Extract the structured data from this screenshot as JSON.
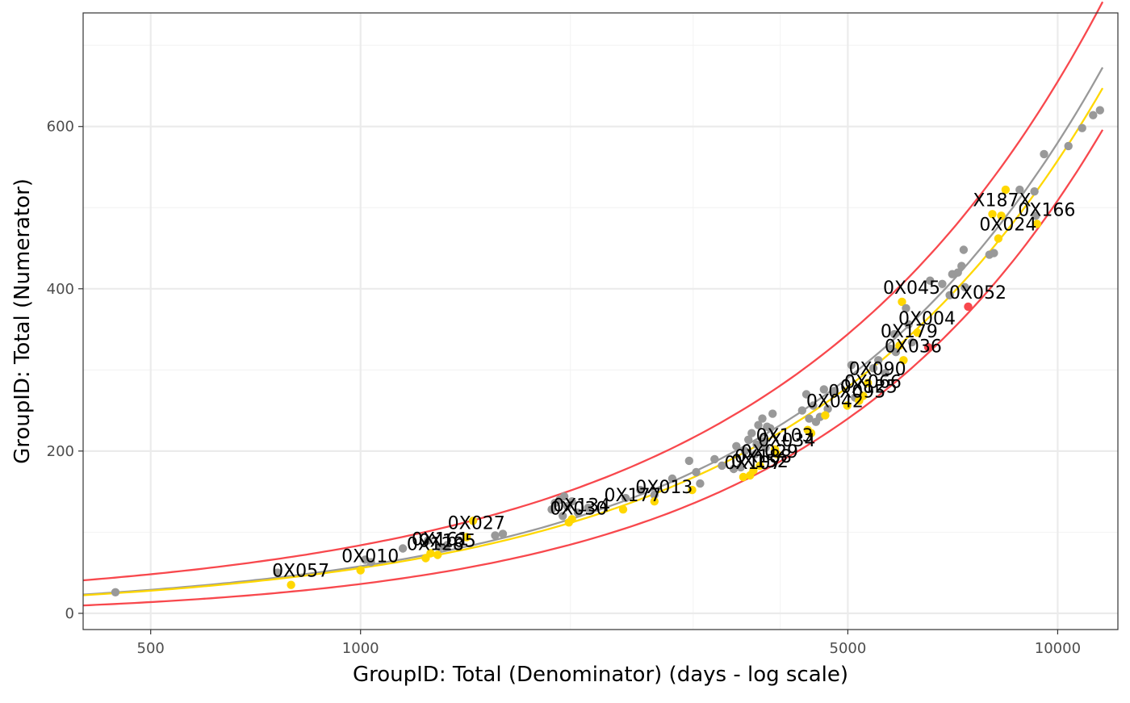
{
  "colors": {
    "grey": "#999999",
    "yellow": "#FFD700",
    "red": "#F8484D",
    "panel_border": "#333333",
    "grid_major": "#EBEBEB",
    "grid_minor": "#F3F3F3",
    "tick_text": "#4D4D4D"
  },
  "chart_data": {
    "type": "scatter",
    "title": "",
    "xlabel": "GroupID:  Total (Denominator) (days - log scale)",
    "ylabel": "GroupID:  Total (Numerator)",
    "x_scale": "log",
    "xlim": [
      400,
      12200
    ],
    "ylim": [
      -20,
      740
    ],
    "x_ticks": [
      500,
      1000,
      5000,
      10000
    ],
    "x_tick_labels": [
      "500",
      "1000",
      "5000",
      "10000"
    ],
    "x_minor_grid": [
      2000,
      3000,
      4000
    ],
    "y_ticks": [
      0,
      200,
      400,
      600
    ],
    "y_tick_labels": [
      "0",
      "200",
      "400",
      "600"
    ],
    "y_minor_grid": [
      100,
      300,
      500,
      700
    ],
    "grid": true,
    "legend": "none",
    "rate": 0.058,
    "curves": [
      {
        "role": "average",
        "color_key": "grey",
        "rate": 0.058
      },
      {
        "role": "funnel-low",
        "color_key": "yellow",
        "rate": 0.0558
      },
      {
        "role": "funnel-upper",
        "color_key": "red",
        "rate": 0.058,
        "ci": "upper"
      },
      {
        "role": "funnel-lower",
        "color_key": "red",
        "rate": 0.058,
        "ci": "lower"
      }
    ],
    "points": [
      {
        "x": 445,
        "y": 26,
        "c": "grey"
      },
      {
        "x": 760,
        "y": 50,
        "c": "grey"
      },
      {
        "x": 795,
        "y": 35,
        "c": "yellow",
        "label": "0X057"
      },
      {
        "x": 1015,
        "y": 66,
        "c": "grey"
      },
      {
        "x": 1035,
        "y": 63,
        "c": "grey"
      },
      {
        "x": 1000,
        "y": 53,
        "c": "yellow",
        "label": "0X010"
      },
      {
        "x": 1150,
        "y": 80,
        "c": "grey"
      },
      {
        "x": 1240,
        "y": 68,
        "c": "yellow",
        "label": "0X128"
      },
      {
        "x": 1260,
        "y": 74,
        "c": "yellow",
        "label": "0X161"
      },
      {
        "x": 1290,
        "y": 72,
        "c": "yellow",
        "label": "0X165"
      },
      {
        "x": 1250,
        "y": 90,
        "c": "grey"
      },
      {
        "x": 1300,
        "y": 82,
        "c": "grey"
      },
      {
        "x": 1330,
        "y": 84,
        "c": "grey"
      },
      {
        "x": 1420,
        "y": 94,
        "c": "yellow",
        "label": "0X027"
      },
      {
        "x": 1450,
        "y": 114,
        "c": "yellow"
      },
      {
        "x": 1560,
        "y": 96,
        "c": "grey"
      },
      {
        "x": 1600,
        "y": 98,
        "c": "grey"
      },
      {
        "x": 1880,
        "y": 128,
        "c": "grey"
      },
      {
        "x": 1900,
        "y": 136,
        "c": "grey"
      },
      {
        "x": 1930,
        "y": 140,
        "c": "grey"
      },
      {
        "x": 1960,
        "y": 144,
        "c": "grey"
      },
      {
        "x": 1950,
        "y": 120,
        "c": "grey"
      },
      {
        "x": 1980,
        "y": 132,
        "c": "grey"
      },
      {
        "x": 2010,
        "y": 138,
        "c": "grey"
      },
      {
        "x": 1990,
        "y": 112,
        "c": "yellow",
        "label": "0X030"
      },
      {
        "x": 2010,
        "y": 116,
        "c": "yellow",
        "label": "0X134"
      },
      {
        "x": 2050,
        "y": 124,
        "c": "grey"
      },
      {
        "x": 2120,
        "y": 130,
        "c": "grey"
      },
      {
        "x": 2380,
        "y": 128,
        "c": "yellow",
        "label": "0X177"
      },
      {
        "x": 2400,
        "y": 142,
        "c": "grey"
      },
      {
        "x": 2520,
        "y": 152,
        "c": "grey"
      },
      {
        "x": 2640,
        "y": 146,
        "c": "grey"
      },
      {
        "x": 2640,
        "y": 138,
        "c": "yellow",
        "label": "0X013"
      },
      {
        "x": 2800,
        "y": 166,
        "c": "grey"
      },
      {
        "x": 2960,
        "y": 188,
        "c": "grey"
      },
      {
        "x": 2990,
        "y": 152,
        "c": "yellow"
      },
      {
        "x": 3030,
        "y": 174,
        "c": "grey"
      },
      {
        "x": 3070,
        "y": 160,
        "c": "grey"
      },
      {
        "x": 3220,
        "y": 190,
        "c": "grey"
      },
      {
        "x": 3300,
        "y": 182,
        "c": "grey"
      },
      {
        "x": 3430,
        "y": 178,
        "c": "grey"
      },
      {
        "x": 3460,
        "y": 206,
        "c": "grey"
      },
      {
        "x": 3510,
        "y": 180,
        "c": "grey"
      },
      {
        "x": 3540,
        "y": 168,
        "c": "yellow",
        "label": "0X107"
      },
      {
        "x": 3560,
        "y": 200,
        "c": "grey"
      },
      {
        "x": 3600,
        "y": 214,
        "c": "grey"
      },
      {
        "x": 3620,
        "y": 170,
        "c": "yellow",
        "label": "0X152"
      },
      {
        "x": 3640,
        "y": 222,
        "c": "grey"
      },
      {
        "x": 3660,
        "y": 176,
        "c": "yellow",
        "label": "0X188"
      },
      {
        "x": 3680,
        "y": 196,
        "c": "grey"
      },
      {
        "x": 3700,
        "y": 208,
        "c": "grey"
      },
      {
        "x": 3720,
        "y": 232,
        "c": "grey"
      },
      {
        "x": 3740,
        "y": 182,
        "c": "yellow",
        "label": "0X029"
      },
      {
        "x": 3770,
        "y": 240,
        "c": "grey"
      },
      {
        "x": 3790,
        "y": 212,
        "c": "grey"
      },
      {
        "x": 3810,
        "y": 204,
        "c": "grey"
      },
      {
        "x": 3830,
        "y": 230,
        "c": "grey"
      },
      {
        "x": 3870,
        "y": 228,
        "c": "grey"
      },
      {
        "x": 3900,
        "y": 246,
        "c": "grey"
      },
      {
        "x": 3930,
        "y": 202,
        "c": "yellow",
        "label": "0X103"
      },
      {
        "x": 3960,
        "y": 196,
        "c": "yellow",
        "label": "0X034"
      },
      {
        "x": 4300,
        "y": 250,
        "c": "grey"
      },
      {
        "x": 4360,
        "y": 270,
        "c": "grey"
      },
      {
        "x": 4380,
        "y": 226,
        "c": "yellow"
      },
      {
        "x": 4400,
        "y": 240,
        "c": "grey"
      },
      {
        "x": 4430,
        "y": 222,
        "c": "yellow"
      },
      {
        "x": 4460,
        "y": 256,
        "c": "grey"
      },
      {
        "x": 4500,
        "y": 236,
        "c": "grey"
      },
      {
        "x": 4560,
        "y": 242,
        "c": "grey"
      },
      {
        "x": 4620,
        "y": 276,
        "c": "grey"
      },
      {
        "x": 4680,
        "y": 252,
        "c": "grey"
      },
      {
        "x": 4780,
        "y": 274,
        "c": "grey"
      },
      {
        "x": 4640,
        "y": 244,
        "c": "yellow",
        "label": "0X042"
      },
      {
        "x": 4990,
        "y": 256,
        "c": "yellow",
        "label": "0X095"
      },
      {
        "x": 5060,
        "y": 306,
        "c": "grey"
      },
      {
        "x": 5120,
        "y": 266,
        "c": "grey"
      },
      {
        "x": 5190,
        "y": 262,
        "c": "yellow",
        "label": "0X125"
      },
      {
        "x": 5260,
        "y": 268,
        "c": "yellow",
        "label": "0X066"
      },
      {
        "x": 5340,
        "y": 284,
        "c": "yellow",
        "label": "0X090"
      },
      {
        "x": 5440,
        "y": 302,
        "c": "grey"
      },
      {
        "x": 5530,
        "y": 312,
        "c": "grey"
      },
      {
        "x": 5660,
        "y": 296,
        "c": "grey"
      },
      {
        "x": 5760,
        "y": 326,
        "c": "grey"
      },
      {
        "x": 5830,
        "y": 344,
        "c": "grey"
      },
      {
        "x": 5860,
        "y": 322,
        "c": "grey"
      },
      {
        "x": 5930,
        "y": 330,
        "c": "yellow",
        "label": "0X179"
      },
      {
        "x": 5980,
        "y": 384,
        "c": "yellow",
        "label": "0X045"
      },
      {
        "x": 6010,
        "y": 312,
        "c": "yellow",
        "label": "0X036"
      },
      {
        "x": 6060,
        "y": 376,
        "c": "grey"
      },
      {
        "x": 6110,
        "y": 356,
        "c": "grey"
      },
      {
        "x": 6180,
        "y": 334,
        "c": "grey"
      },
      {
        "x": 6290,
        "y": 346,
        "c": "yellow",
        "label": "0X004"
      },
      {
        "x": 6520,
        "y": 328,
        "c": "red"
      },
      {
        "x": 6560,
        "y": 410,
        "c": "grey"
      },
      {
        "x": 6830,
        "y": 406,
        "c": "grey"
      },
      {
        "x": 7000,
        "y": 392,
        "c": "grey"
      },
      {
        "x": 7060,
        "y": 418,
        "c": "grey"
      },
      {
        "x": 7190,
        "y": 420,
        "c": "grey"
      },
      {
        "x": 7280,
        "y": 428,
        "c": "grey"
      },
      {
        "x": 7330,
        "y": 448,
        "c": "grey"
      },
      {
        "x": 7360,
        "y": 402,
        "c": "grey"
      },
      {
        "x": 7440,
        "y": 378,
        "c": "red",
        "label": "0X052"
      },
      {
        "x": 7980,
        "y": 442,
        "c": "grey"
      },
      {
        "x": 8100,
        "y": 444,
        "c": "grey"
      },
      {
        "x": 8060,
        "y": 492,
        "c": "yellow",
        "label": "X187X"
      },
      {
        "x": 8220,
        "y": 462,
        "c": "yellow",
        "label": "0X024"
      },
      {
        "x": 8300,
        "y": 490,
        "c": "yellow"
      },
      {
        "x": 8420,
        "y": 522,
        "c": "yellow"
      },
      {
        "x": 8820,
        "y": 522,
        "c": "grey"
      },
      {
        "x": 9260,
        "y": 520,
        "c": "grey"
      },
      {
        "x": 9300,
        "y": 490,
        "c": "grey"
      },
      {
        "x": 9340,
        "y": 480,
        "c": "yellow",
        "label": "0X166"
      },
      {
        "x": 9560,
        "y": 566,
        "c": "grey"
      },
      {
        "x": 10360,
        "y": 576,
        "c": "grey"
      },
      {
        "x": 10840,
        "y": 598,
        "c": "grey"
      },
      {
        "x": 11240,
        "y": 614,
        "c": "grey"
      },
      {
        "x": 11500,
        "y": 620,
        "c": "grey"
      }
    ]
  }
}
